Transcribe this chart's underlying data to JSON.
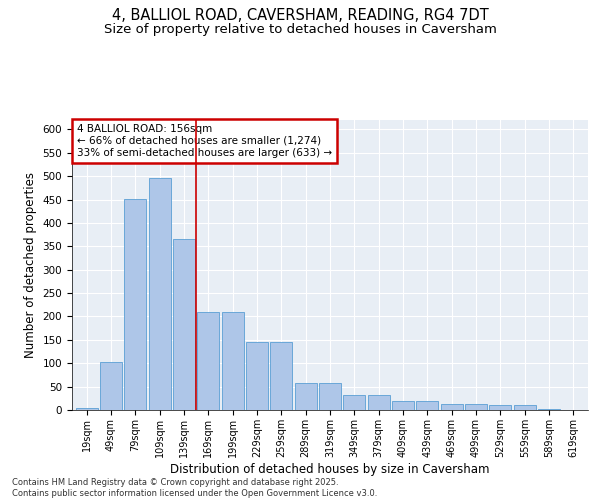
{
  "title_line1": "4, BALLIOL ROAD, CAVERSHAM, READING, RG4 7DT",
  "title_line2": "Size of property relative to detached houses in Caversham",
  "xlabel": "Distribution of detached houses by size in Caversham",
  "ylabel": "Number of detached properties",
  "bins": [
    "19sqm",
    "49sqm",
    "79sqm",
    "109sqm",
    "139sqm",
    "169sqm",
    "199sqm",
    "229sqm",
    "259sqm",
    "289sqm",
    "319sqm",
    "349sqm",
    "379sqm",
    "409sqm",
    "439sqm",
    "469sqm",
    "499sqm",
    "529sqm",
    "559sqm",
    "589sqm",
    "619sqm"
  ],
  "values": [
    5,
    103,
    452,
    495,
    365,
    210,
    210,
    145,
    145,
    57,
    57,
    32,
    32,
    20,
    20,
    12,
    12,
    10,
    10,
    3,
    1
  ],
  "bar_color": "#aec6e8",
  "bar_edge_color": "#5a9fd4",
  "vline_x_index": 4.5,
  "vline_color": "#cc0000",
  "annotation_title": "4 BALLIOL ROAD: 156sqm",
  "annotation_line2": "← 66% of detached houses are smaller (1,274)",
  "annotation_line3": "33% of semi-detached houses are larger (633) →",
  "annotation_box_color": "#cc0000",
  "annotation_text_color": "#000000",
  "annotation_bg": "#ffffff",
  "ylim": [
    0,
    620
  ],
  "yticks": [
    0,
    50,
    100,
    150,
    200,
    250,
    300,
    350,
    400,
    450,
    500,
    550,
    600
  ],
  "background_color": "#e8eef5",
  "footer_line1": "Contains HM Land Registry data © Crown copyright and database right 2025.",
  "footer_line2": "Contains public sector information licensed under the Open Government Licence v3.0.",
  "title_fontsize": 10.5,
  "subtitle_fontsize": 9.5
}
